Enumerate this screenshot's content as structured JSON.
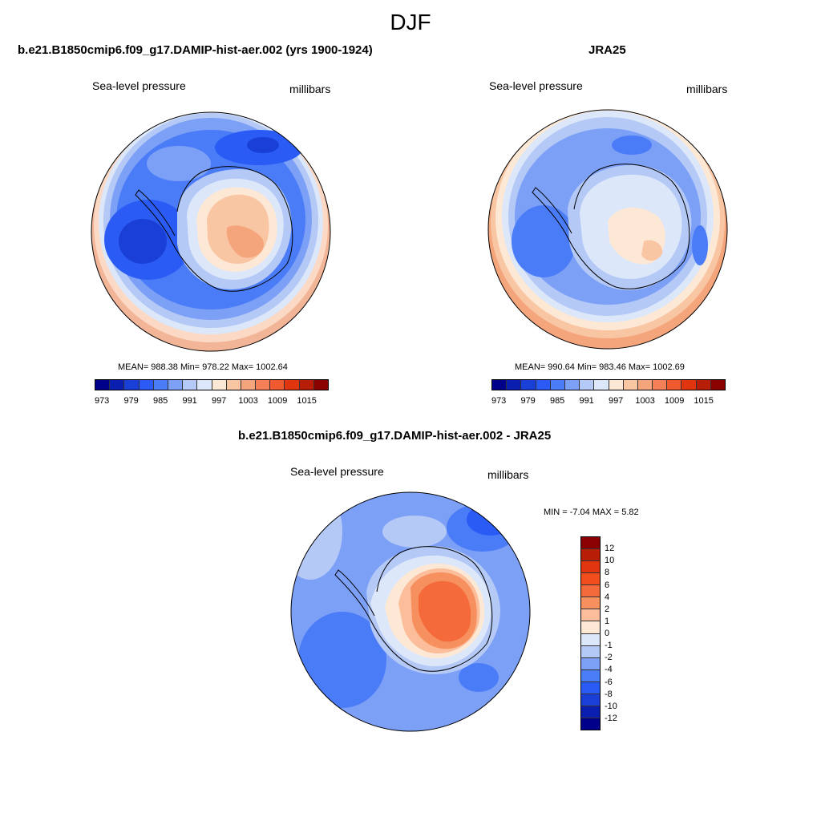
{
  "page": {
    "title": "DJF"
  },
  "panels": [
    {
      "title": "b.e21.B1850cmip6.f09_g17.DAMIP-hist-aer.002 (yrs 1900-1924)",
      "variable_label": "Sea-level pressure",
      "units_label": "millibars",
      "stats": "MEAN= 988.38  Min= 978.22  Max= 1002.64",
      "colorbar": {
        "ticks": [
          "973",
          "979",
          "985",
          "991",
          "997",
          "1003",
          "1009",
          "1015"
        ],
        "colors": [
          "#00008b",
          "#0a1fb0",
          "#1a3fd6",
          "#2a5cf5",
          "#4a7cf7",
          "#7da0f7",
          "#b5c9f7",
          "#dce7fa",
          "#fde8d6",
          "#f9c6a4",
          "#f5a57c",
          "#f48057",
          "#ef5a31",
          "#e0350f",
          "#b81e05",
          "#8b0000"
        ]
      }
    },
    {
      "title": "JRA25",
      "variable_label": "Sea-level pressure",
      "units_label": "millibars",
      "stats": "MEAN= 990.64  Min= 983.46  Max= 1002.69",
      "colorbar": {
        "ticks": [
          "973",
          "979",
          "985",
          "991",
          "997",
          "1003",
          "1009",
          "1015"
        ],
        "colors": [
          "#00008b",
          "#0a1fb0",
          "#1a3fd6",
          "#2a5cf5",
          "#4a7cf7",
          "#7da0f7",
          "#b5c9f7",
          "#dce7fa",
          "#fde8d6",
          "#f9c6a4",
          "#f5a57c",
          "#f48057",
          "#ef5a31",
          "#e0350f",
          "#b81e05",
          "#8b0000"
        ]
      }
    },
    {
      "title": "b.e21.B1850cmip6.f09_g17.DAMIP-hist-aer.002 - JRA25",
      "variable_label": "Sea-level pressure",
      "units_label": "millibars",
      "stats": "MIN =  -7.04 MAX =   5.82",
      "colorbar": {
        "ticks": [
          "12",
          "10",
          "8",
          "6",
          "4",
          "2",
          "1",
          "0",
          "-1",
          "-2",
          "-4",
          "-6",
          "-8",
          "-10",
          "-12"
        ],
        "colors": [
          "#8b0000",
          "#b81e05",
          "#e0350f",
          "#f24d1c",
          "#f56a3a",
          "#f7905f",
          "#fbbd9a",
          "#fde8d6",
          "#dce7fa",
          "#b5c9f7",
          "#7da0f7",
          "#4a7cf7",
          "#2a5cf5",
          "#1a3fd6",
          "#0a1fb0",
          "#00008b"
        ]
      }
    }
  ]
}
